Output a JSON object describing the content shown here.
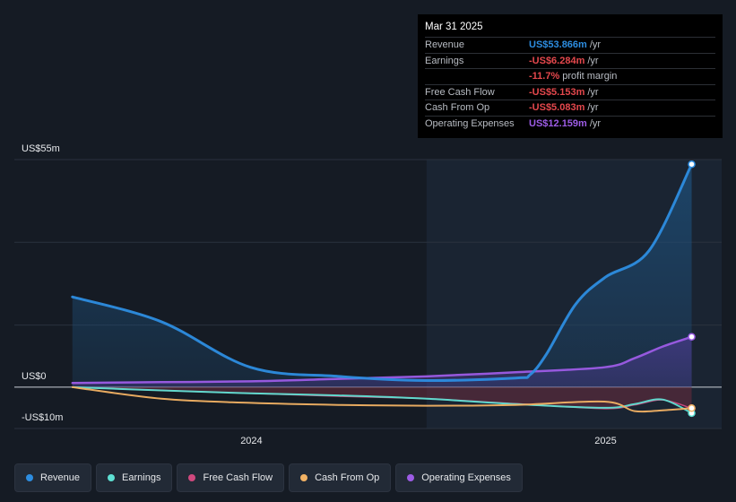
{
  "tooltip": {
    "date": "Mar 31 2025",
    "rows": [
      {
        "label": "Revenue",
        "value": "US$53.866m",
        "unit": "/yr",
        "color": "#2d8de0"
      },
      {
        "label": "Earnings",
        "value": "-US$6.284m",
        "unit": "/yr",
        "color": "#e5484d"
      },
      {
        "label": "",
        "value": "-11.7%",
        "unit": "profit margin",
        "color": "#e5484d"
      },
      {
        "label": "Free Cash Flow",
        "value": "-US$5.153m",
        "unit": "/yr",
        "color": "#e5484d"
      },
      {
        "label": "Cash From Op",
        "value": "-US$5.083m",
        "unit": "/yr",
        "color": "#e5484d"
      },
      {
        "label": "Operating Expenses",
        "value": "US$12.159m",
        "unit": "/yr",
        "color": "#9d5ce6"
      }
    ]
  },
  "axis": {
    "y_top_label": "US$55m",
    "y_zero_label": "US$0",
    "y_bottom_label": "-US$10m",
    "x_ticks": [
      "2024",
      "2025"
    ]
  },
  "legend": [
    {
      "label": "Revenue",
      "color": "#2d8de0"
    },
    {
      "label": "Earnings",
      "color": "#5ee0d3"
    },
    {
      "label": "Free Cash Flow",
      "color": "#d0497e"
    },
    {
      "label": "Cash From Op",
      "color": "#f2b264"
    },
    {
      "label": "Operating Expenses",
      "color": "#9d5ce6"
    }
  ],
  "chart_data": {
    "type": "line",
    "ylim": [
      -10,
      55
    ],
    "xlim": [
      "2023-05-01",
      "2025-05-01"
    ],
    "x_ticks": [
      {
        "label": "2024",
        "x": "2024-01-01"
      },
      {
        "label": "2025",
        "x": "2025-01-01"
      }
    ],
    "highlight_from": "2024-06-30",
    "grid": true,
    "series": [
      {
        "name": "Revenue",
        "color": "#2d8de0",
        "points": [
          [
            "2023-06-30",
            21.8
          ],
          [
            "2023-09-30",
            15.8
          ],
          [
            "2023-12-31",
            4.8
          ],
          [
            "2024-03-31",
            2.6
          ],
          [
            "2024-06-30",
            1.6
          ],
          [
            "2024-09-30",
            2.2
          ],
          [
            "2024-10-15",
            3.0
          ],
          [
            "2024-11-01",
            8.0
          ],
          [
            "2024-12-01",
            20.0
          ],
          [
            "2025-01-01",
            26.6
          ],
          [
            "2025-02-15",
            33.0
          ],
          [
            "2025-03-31",
            53.866
          ]
        ]
      },
      {
        "name": "Earnings",
        "color": "#5ee0d3",
        "points": [
          [
            "2023-06-30",
            0
          ],
          [
            "2023-09-30",
            -0.8
          ],
          [
            "2023-12-31",
            -1.5
          ],
          [
            "2024-03-31",
            -2.0
          ],
          [
            "2024-06-30",
            -2.8
          ],
          [
            "2024-09-30",
            -4.1
          ],
          [
            "2024-12-31",
            -5.0
          ],
          [
            "2025-01-31",
            -4.1
          ],
          [
            "2025-03-01",
            -3.0
          ],
          [
            "2025-03-31",
            -6.284
          ]
        ]
      },
      {
        "name": "Free Cash Flow",
        "color": "#d0497e",
        "points": [
          [
            "2023-06-30",
            0
          ],
          [
            "2023-09-30",
            -0.8
          ],
          [
            "2023-12-31",
            -1.5
          ],
          [
            "2024-03-31",
            -2.2
          ],
          [
            "2024-06-30",
            -2.8
          ],
          [
            "2024-09-30",
            -4.0
          ],
          [
            "2024-12-31",
            -5.2
          ],
          [
            "2025-01-31",
            -4.3
          ],
          [
            "2025-03-01",
            -3.1
          ],
          [
            "2025-03-31",
            -5.153
          ]
        ]
      },
      {
        "name": "Cash From Op",
        "color": "#f2b264",
        "points": [
          [
            "2023-06-30",
            0
          ],
          [
            "2023-09-30",
            -2.8
          ],
          [
            "2023-12-31",
            -3.8
          ],
          [
            "2024-03-31",
            -4.3
          ],
          [
            "2024-06-30",
            -4.5
          ],
          [
            "2024-09-30",
            -4.3
          ],
          [
            "2024-12-31",
            -3.5
          ],
          [
            "2025-01-31",
            -5.8
          ],
          [
            "2025-03-01",
            -5.6
          ],
          [
            "2025-03-31",
            -5.083
          ]
        ]
      },
      {
        "name": "Operating Expenses",
        "color": "#9d5ce6",
        "points": [
          [
            "2023-06-30",
            1.0
          ],
          [
            "2023-09-30",
            1.2
          ],
          [
            "2023-12-31",
            1.4
          ],
          [
            "2024-03-31",
            2.0
          ],
          [
            "2024-06-30",
            2.6
          ],
          [
            "2024-09-30",
            3.6
          ],
          [
            "2024-12-31",
            4.8
          ],
          [
            "2025-01-31",
            7.0
          ],
          [
            "2025-03-01",
            9.8
          ],
          [
            "2025-03-31",
            12.159
          ]
        ]
      }
    ]
  }
}
